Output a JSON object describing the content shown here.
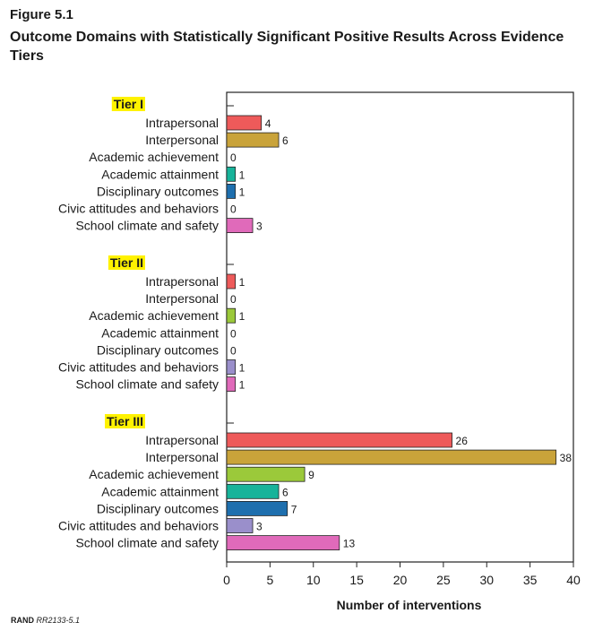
{
  "figure_label": "Figure 5.1",
  "figure_title": "Outcome Domains with Statistically Significant Positive Results Across Evidence Tiers",
  "source": {
    "org": "RAND",
    "code": "RR2133-5.1"
  },
  "colors": {
    "Intrapersonal": "#ee5a5a",
    "Interpersonal": "#c9a33a",
    "Academic achievement": "#9bc93a",
    "Academic attainment": "#17b39a",
    "Disciplinary outcomes": "#1e6fae",
    "Civic attitudes and behaviors": "#9a8fcb",
    "School climate and safety": "#e06aba",
    "tier_highlight": "#fff200"
  },
  "chart_data": {
    "type": "bar",
    "orientation": "horizontal",
    "xlabel": "Number of interventions",
    "xlim": [
      0,
      40
    ],
    "xticks": [
      0,
      5,
      10,
      15,
      20,
      25,
      30,
      35,
      40
    ],
    "grid": false,
    "groups": [
      {
        "name": "Tier I",
        "categories": [
          "Intrapersonal",
          "Interpersonal",
          "Academic achievement",
          "Academic attainment",
          "Disciplinary outcomes",
          "Civic attitudes and behaviors",
          "School climate and safety"
        ],
        "values": [
          4,
          6,
          0,
          1,
          1,
          0,
          3
        ]
      },
      {
        "name": "Tier II",
        "categories": [
          "Intrapersonal",
          "Interpersonal",
          "Academic achievement",
          "Academic attainment",
          "Disciplinary outcomes",
          "Civic attitudes and behaviors",
          "School climate and safety"
        ],
        "values": [
          1,
          0,
          1,
          0,
          0,
          1,
          1
        ]
      },
      {
        "name": "Tier III",
        "categories": [
          "Intrapersonal",
          "Interpersonal",
          "Academic achievement",
          "Academic attainment",
          "Disciplinary outcomes",
          "Civic attitudes and behaviors",
          "School climate and safety"
        ],
        "values": [
          26,
          38,
          9,
          6,
          7,
          3,
          13
        ]
      }
    ]
  }
}
